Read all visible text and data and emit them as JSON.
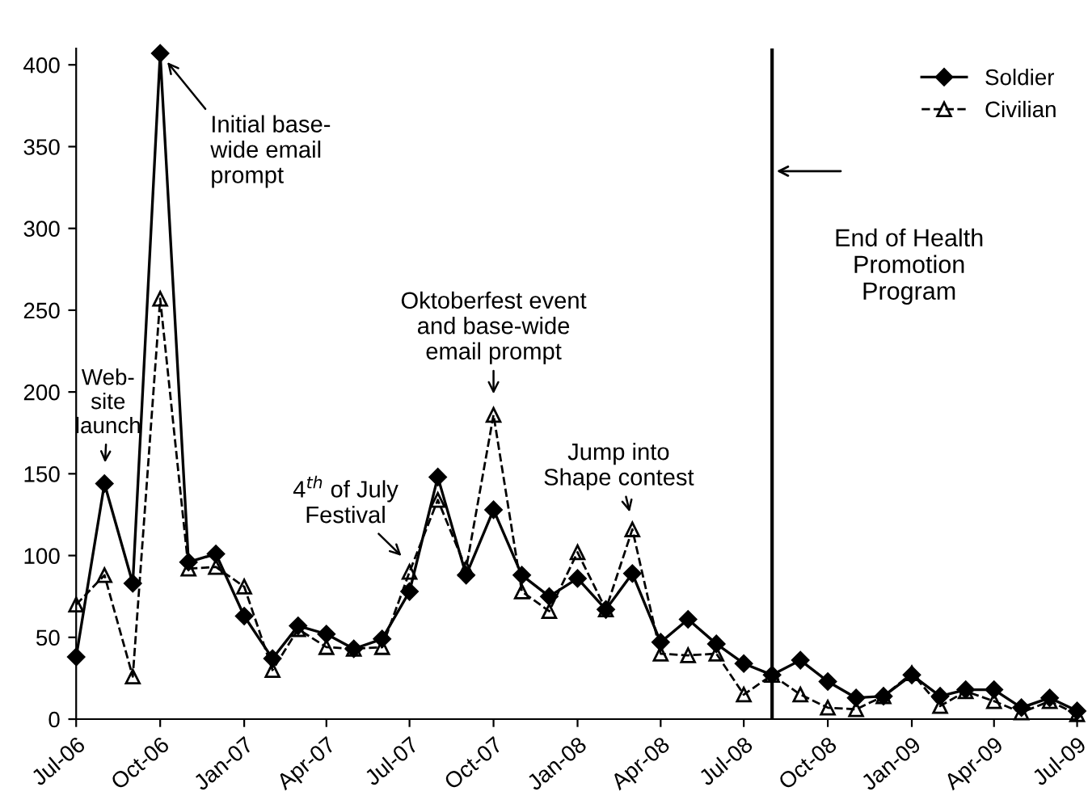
{
  "chart_data": {
    "type": "line",
    "x": [
      "2006-07",
      "2006-08",
      "2006-09",
      "2006-10",
      "2006-11",
      "2006-12",
      "2007-01",
      "2007-02",
      "2007-03",
      "2007-04",
      "2007-05",
      "2007-06",
      "2007-07",
      "2007-08",
      "2007-09",
      "2007-10",
      "2007-11",
      "2007-12",
      "2008-01",
      "2008-02",
      "2008-03",
      "2008-04",
      "2008-05",
      "2008-06",
      "2008-07",
      "2008-08",
      "2008-09",
      "2008-10",
      "2008-11",
      "2008-12",
      "2009-01",
      "2009-02",
      "2009-03",
      "2009-04",
      "2009-05",
      "2009-06",
      "2009-07"
    ],
    "series": [
      {
        "name": "Soldier",
        "color": "#000000",
        "marker": "diamond",
        "line_style": "solid",
        "values": [
          38,
          144,
          83,
          407,
          96,
          101,
          63,
          37,
          57,
          52,
          43,
          49,
          78,
          148,
          88,
          128,
          88,
          75,
          86,
          67,
          89,
          47,
          61,
          46,
          34,
          27,
          36,
          23,
          13,
          14,
          27,
          14,
          18,
          18,
          7,
          13,
          5
        ]
      },
      {
        "name": "Civilian",
        "color": "#000000",
        "marker": "triangle",
        "line_style": "dashed",
        "values": [
          70,
          88,
          26,
          257,
          92,
          93,
          81,
          30,
          55,
          44,
          43,
          44,
          90,
          134,
          92,
          186,
          78,
          66,
          102,
          67,
          116,
          40,
          39,
          40,
          15,
          27,
          15,
          7,
          6,
          14,
          28,
          8,
          17,
          11,
          4,
          11,
          3
        ]
      }
    ],
    "ylim": [
      0,
      410
    ],
    "yticks": [
      0,
      50,
      100,
      150,
      200,
      250,
      300,
      350,
      400
    ],
    "xlim": [
      "2006-07",
      "2009-07"
    ],
    "xticks": [
      {
        "value": "2006-07",
        "label": "Jul-06"
      },
      {
        "value": "2006-10",
        "label": "Oct-06"
      },
      {
        "value": "2007-01",
        "label": "Jan-07"
      },
      {
        "value": "2007-04",
        "label": "Apr-07"
      },
      {
        "value": "2007-07",
        "label": "Jul-07"
      },
      {
        "value": "2007-10",
        "label": "Oct-07"
      },
      {
        "value": "2008-01",
        "label": "Jan-08"
      },
      {
        "value": "2008-04",
        "label": "Apr-08"
      },
      {
        "value": "2008-07",
        "label": "Jul-08"
      },
      {
        "value": "2008-10",
        "label": "Oct-08"
      },
      {
        "value": "2009-01",
        "label": "Jan-09"
      },
      {
        "value": "2009-04",
        "label": "Apr-09"
      },
      {
        "value": "2009-07",
        "label": "Jul-09"
      }
    ],
    "ref_lines": [
      {
        "axis": "x",
        "value": "2008-08",
        "label": "End of Health\nPromotion\nProgram",
        "color": "#000000",
        "line_style": "solid"
      }
    ],
    "annotations": [
      {
        "text": "Web-\nsite\nlaunch",
        "x": "2006-08",
        "y": 150
      },
      {
        "text": "Initial base-\nwide email\nprompt",
        "x": "2006-10",
        "y": 407
      },
      {
        "text": "4$^{th}$ of July\nFestival",
        "x": "2007-07",
        "y": 95
      },
      {
        "text": "Oktoberfest event\nand base-wide\nemail prompt",
        "x": "2007-10",
        "y": 192
      },
      {
        "text": "Jump into\nShape contest",
        "x": "2008-03",
        "y": 120
      }
    ],
    "legend": "top right",
    "grid": false
  }
}
